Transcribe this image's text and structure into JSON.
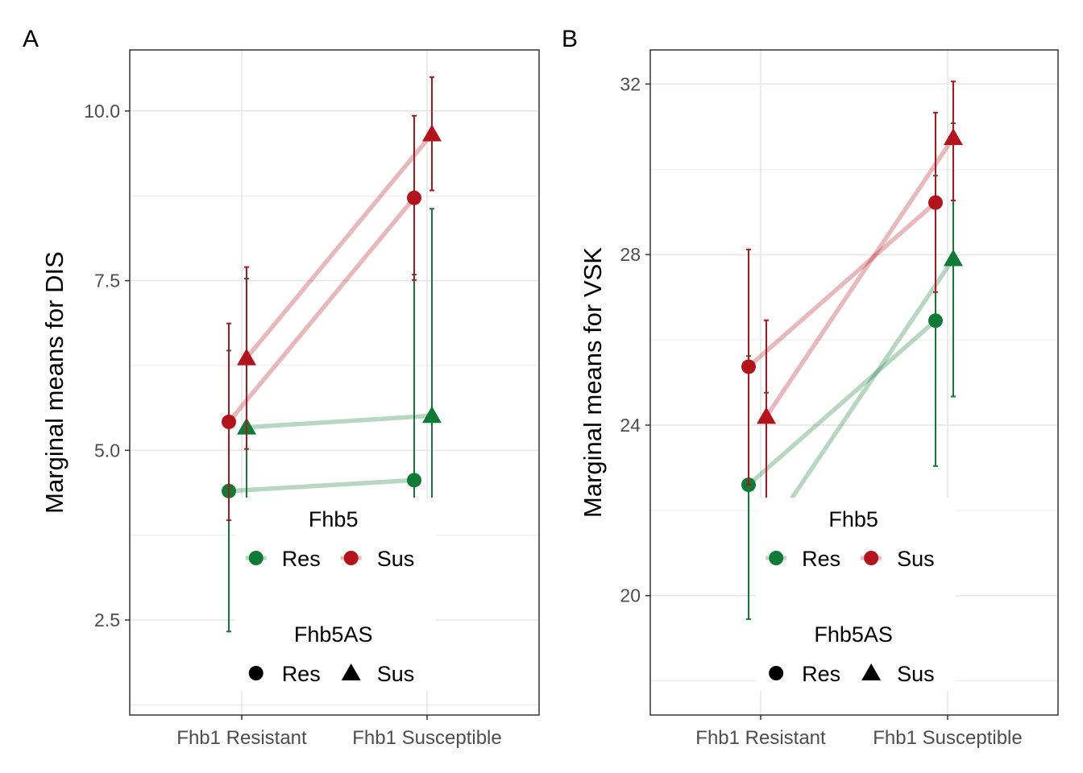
{
  "chart_data": [
    {
      "panel_label": "A",
      "type": "line",
      "x_is_categorical": true,
      "categories": [
        "Fhb1 Resistant",
        "Fhb1 Susceptible"
      ],
      "ylabel": "Marginal means for DIS",
      "xlabel": "",
      "yticks": [
        2.5,
        5.0,
        7.5,
        10.0
      ],
      "ytick_labels": [
        "2.5",
        "5.0",
        "7.5",
        "10.0"
      ],
      "ylim": [
        1.1,
        10.9
      ],
      "grid": true,
      "series": [
        {
          "fhb5": "Res",
          "fhb5as": "Res",
          "color": "#0f7b36",
          "marker": "circle",
          "values": [
            4.4,
            4.56
          ],
          "lower": [
            2.33,
            1.53
          ],
          "upper": [
            6.47,
            7.59
          ]
        },
        {
          "fhb5": "Res",
          "fhb5as": "Sus",
          "color": "#0f7b36",
          "marker": "triangle",
          "values": [
            5.34,
            5.51
          ],
          "lower": [
            3.16,
            2.45
          ],
          "upper": [
            7.53,
            8.56
          ]
        },
        {
          "fhb5": "Sus",
          "fhb5as": "Res",
          "color": "#b3141c",
          "marker": "circle",
          "values": [
            5.42,
            8.72
          ],
          "lower": [
            3.97,
            7.51
          ],
          "upper": [
            6.87,
            9.93
          ]
        },
        {
          "fhb5": "Sus",
          "fhb5as": "Sus",
          "color": "#b3141c",
          "marker": "triangle",
          "values": [
            6.36,
            9.66
          ],
          "lower": [
            5.02,
            8.83
          ],
          "upper": [
            7.7,
            10.5
          ]
        }
      ],
      "legend": {
        "placement": "bottom-center-inside",
        "color_title": "Fhb5",
        "color_items": [
          {
            "label": "Res",
            "color": "#0f7b36"
          },
          {
            "label": "Sus",
            "color": "#b3141c"
          }
        ],
        "shape_title": "Fhb5AS",
        "shape_items": [
          {
            "label": "Res",
            "marker": "circle"
          },
          {
            "label": "Sus",
            "marker": "triangle"
          }
        ]
      }
    },
    {
      "panel_label": "B",
      "type": "line",
      "x_is_categorical": true,
      "categories": [
        "Fhb1 Resistant",
        "Fhb1 Susceptible"
      ],
      "ylabel": "Marginal means for VSK",
      "xlabel": "",
      "yticks": [
        20,
        24,
        28,
        32
      ],
      "ytick_labels": [
        "20",
        "24",
        "28",
        "32"
      ],
      "ylim": [
        17.2,
        32.8
      ],
      "grid": true,
      "series": [
        {
          "fhb5": "Res",
          "fhb5as": "Res",
          "color": "#0f7b36",
          "marker": "circle",
          "values": [
            22.6,
            26.45
          ],
          "lower": [
            19.45,
            23.04
          ],
          "upper": [
            25.62,
            29.85
          ]
        },
        {
          "fhb5": "Res",
          "fhb5as": "Sus",
          "color": "#0f7b36",
          "marker": "triangle",
          "values": [
            21.4,
            27.9
          ],
          "lower": [
            17.8,
            24.67
          ],
          "upper": [
            24.76,
            31.08
          ]
        },
        {
          "fhb5": "Sus",
          "fhb5as": "Res",
          "color": "#b3141c",
          "marker": "circle",
          "values": [
            25.37,
            29.22
          ],
          "lower": [
            22.6,
            27.12
          ],
          "upper": [
            28.12,
            31.33
          ]
        },
        {
          "fhb5": "Sus",
          "fhb5as": "Sus",
          "color": "#b3141c",
          "marker": "triangle",
          "values": [
            24.2,
            30.74
          ],
          "lower": [
            21.85,
            29.27
          ],
          "upper": [
            26.46,
            32.06
          ]
        }
      ],
      "legend": {
        "placement": "bottom-center-inside",
        "color_title": "Fhb5",
        "color_items": [
          {
            "label": "Res",
            "color": "#0f7b36"
          },
          {
            "label": "Sus",
            "color": "#b3141c"
          }
        ],
        "shape_title": "Fhb5AS",
        "shape_items": [
          {
            "label": "Res",
            "marker": "circle"
          },
          {
            "label": "Sus",
            "marker": "triangle"
          }
        ]
      }
    }
  ]
}
